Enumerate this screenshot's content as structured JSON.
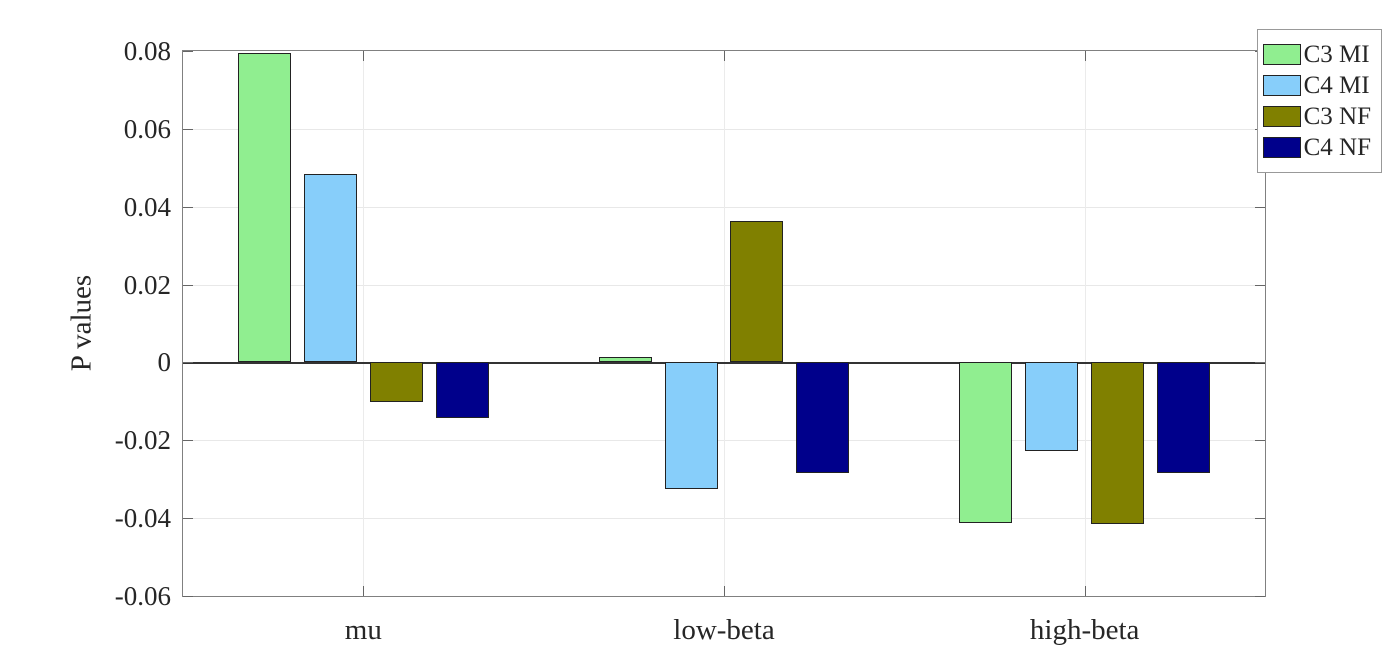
{
  "chart_data": {
    "type": "bar",
    "title": "",
    "xlabel": "",
    "ylabel": "P values",
    "categories": [
      "mu",
      "low-beta",
      "high-beta"
    ],
    "series": [
      {
        "name": "C3 MI",
        "color": "#90EE90",
        "values": [
          0.0795,
          0.0013,
          -0.0413
        ]
      },
      {
        "name": "C4 MI",
        "color": "#87CEFA",
        "values": [
          0.0485,
          -0.0325,
          -0.0228
        ]
      },
      {
        "name": "C3 NF",
        "color": "#808000",
        "values": [
          -0.0102,
          0.0363,
          -0.0415
        ]
      },
      {
        "name": "C4 NF",
        "color": "#00008B",
        "values": [
          -0.0142,
          -0.0283,
          -0.0283
        ]
      }
    ],
    "ylim": [
      -0.06,
      0.08
    ],
    "yticks": [
      0.08,
      0.06,
      0.04,
      0.02,
      0,
      -0.02,
      -0.04,
      -0.06
    ],
    "ytick_labels": [
      "0.08",
      "0.06",
      "0.04",
      "0.02",
      "0",
      "-0.02",
      "-0.04",
      "-0.06"
    ],
    "grid": true,
    "box": true,
    "legend_position": "top-right",
    "colors": {
      "axis": "#808080",
      "grid": "#e8e8e8",
      "zero_line": "#333333",
      "bar_edge": "#222222",
      "text": "#262626"
    },
    "layout": {
      "bar_width_frac_of_group": 0.1467,
      "bar_spacing_frac_of_group": 0.1827
    }
  }
}
